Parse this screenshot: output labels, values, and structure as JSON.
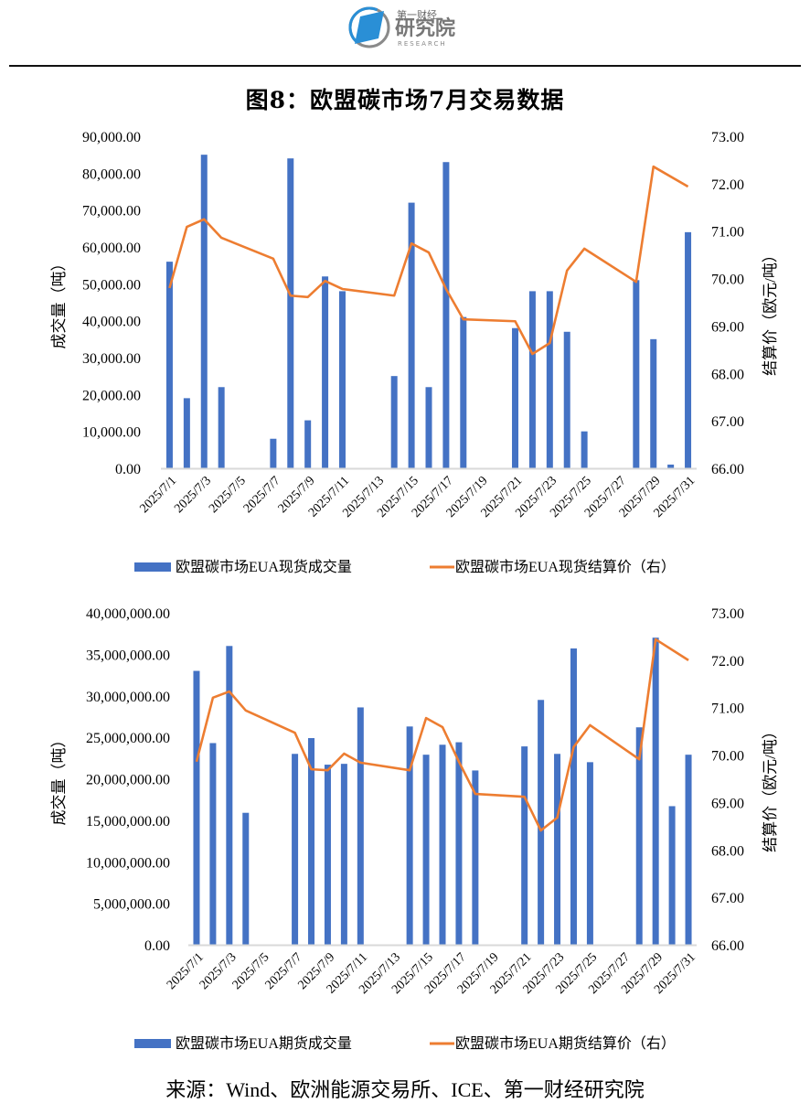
{
  "header": {
    "logo_line1": "第一财经",
    "logo_line2": "研究院",
    "logo_line3": "RESEARCH",
    "title": "图8：欧盟碳市场7月交易数据"
  },
  "colors": {
    "bar": "#4472C4",
    "line": "#ED7D31",
    "axis": "#D9D9D9"
  },
  "chart_data": [
    {
      "type": "bar+line",
      "title": "",
      "categories": [
        "2025/7/1",
        "2025/7/2",
        "2025/7/3",
        "2025/7/4",
        "2025/7/7",
        "2025/7/8",
        "2025/7/9",
        "2025/7/10",
        "2025/7/11",
        "2025/7/14",
        "2025/7/15",
        "2025/7/16",
        "2025/7/17",
        "2025/7/18",
        "2025/7/21",
        "2025/7/22",
        "2025/7/23",
        "2025/7/24",
        "2025/7/25",
        "2025/7/28",
        "2025/7/29",
        "2025/7/30",
        "2025/7/31"
      ],
      "x_tick_labels": [
        "2025/7/1",
        "2025/7/3",
        "2025/7/5",
        "2025/7/7",
        "2025/7/9",
        "2025/7/11",
        "2025/7/13",
        "2025/7/15",
        "2025/7/17",
        "2025/7/19",
        "2025/7/21",
        "2025/7/23",
        "2025/7/25",
        "2025/7/27",
        "2025/7/29",
        "2025/7/31"
      ],
      "series": [
        {
          "name": "欧盟碳市场EUA现货成交量",
          "type": "bar",
          "axis": "left",
          "values": [
            56000,
            19000,
            85000,
            22000,
            8000,
            84000,
            13000,
            52000,
            48000,
            25000,
            72000,
            22000,
            83000,
            41000,
            38000,
            48000,
            48000,
            37000,
            10000,
            51000,
            35000,
            1000,
            64000
          ]
        },
        {
          "name": "欧盟碳市场EUA现货结算价（右）",
          "type": "line",
          "axis": "right",
          "values": [
            69.8,
            71.09,
            71.25,
            70.86,
            70.42,
            69.64,
            69.61,
            69.95,
            69.78,
            69.64,
            70.74,
            70.55,
            69.78,
            69.14,
            69.1,
            68.41,
            68.64,
            70.17,
            70.63,
            69.93,
            72.36,
            null,
            71.94
          ]
        }
      ],
      "ylabel": "成交量（吨）",
      "y2label": "结算价（欧元/吨）",
      "ylim": [
        0,
        90000
      ],
      "y_ticks": [
        "0.00",
        "10,000.00",
        "20,000.00",
        "30,000.00",
        "40,000.00",
        "50,000.00",
        "60,000.00",
        "70,000.00",
        "80,000.00",
        "90,000.00"
      ],
      "y2lim": [
        66,
        73
      ],
      "y2_ticks": [
        "66.00",
        "67.00",
        "68.00",
        "69.00",
        "70.00",
        "71.00",
        "72.00",
        "73.00"
      ],
      "grid": false,
      "legend": "bottom"
    },
    {
      "type": "bar+line",
      "title": "",
      "categories": [
        "2025/7/1",
        "2025/7/2",
        "2025/7/3",
        "2025/7/4",
        "2025/7/7",
        "2025/7/8",
        "2025/7/9",
        "2025/7/10",
        "2025/7/11",
        "2025/7/14",
        "2025/7/15",
        "2025/7/16",
        "2025/7/17",
        "2025/7/18",
        "2025/7/21",
        "2025/7/22",
        "2025/7/23",
        "2025/7/24",
        "2025/7/25",
        "2025/7/28",
        "2025/7/29",
        "2025/7/30",
        "2025/7/31"
      ],
      "x_tick_labels": [
        "2025/7/1",
        "2025/7/3",
        "2025/7/5",
        "2025/7/7",
        "2025/7/9",
        "2025/7/11",
        "2025/7/13",
        "2025/7/15",
        "2025/7/17",
        "2025/7/19",
        "2025/7/21",
        "2025/7/23",
        "2025/7/25",
        "2025/7/27",
        "2025/7/29",
        "2025/7/31"
      ],
      "series": [
        {
          "name": "欧盟碳市场EUA期货成交量",
          "type": "bar",
          "axis": "left",
          "values": [
            33000000,
            24300000,
            36000000,
            15900000,
            23000000,
            24900000,
            21700000,
            21800000,
            28600000,
            26300000,
            22900000,
            24100000,
            24400000,
            21000000,
            23900000,
            29500000,
            23000000,
            35700000,
            22000000,
            26200000,
            37000000,
            16700000,
            22900000
          ]
        },
        {
          "name": "欧盟碳市场EUA期货结算价（右）",
          "type": "line",
          "axis": "right",
          "values": [
            69.86,
            71.21,
            71.34,
            70.94,
            70.47,
            69.7,
            69.68,
            70.03,
            69.84,
            69.68,
            70.78,
            70.59,
            69.86,
            69.18,
            69.12,
            68.41,
            68.68,
            70.17,
            70.63,
            69.91,
            72.44,
            null,
            72.0
          ]
        }
      ],
      "ylabel": "成交量（吨）",
      "y2label": "结算价（欧元/吨）",
      "ylim": [
        0,
        40000000
      ],
      "y_ticks": [
        "0.00",
        "5,000,000.00",
        "10,000,000.00",
        "15,000,000.00",
        "20,000,000.00",
        "25,000,000.00",
        "30,000,000.00",
        "35,000,000.00",
        "40,000,000.00"
      ],
      "y2lim": [
        66,
        73
      ],
      "y2_ticks": [
        "66.00",
        "67.00",
        "68.00",
        "69.00",
        "70.00",
        "71.00",
        "72.00",
        "73.00"
      ],
      "grid": false,
      "legend": "bottom"
    }
  ],
  "footer": {
    "source": "来源：Wind、欧洲能源交易所、ICE、第一财经研究院"
  }
}
